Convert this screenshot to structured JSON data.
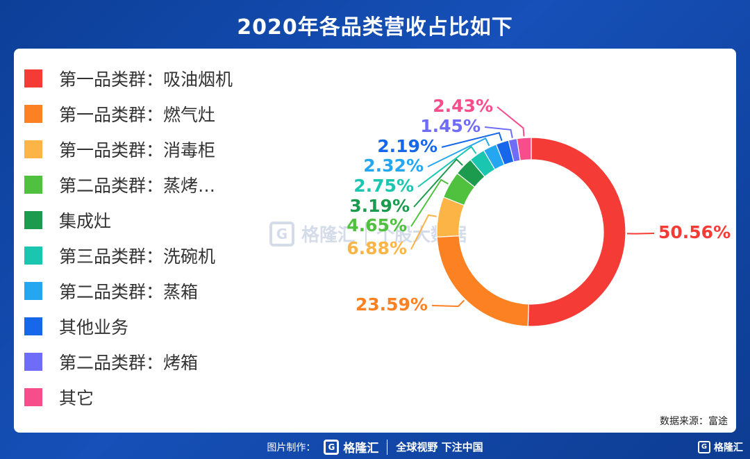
{
  "header": {
    "title": "2020年各品类营收占比如下"
  },
  "chart_data": {
    "type": "pie",
    "title": "2020年各品类营收占比如下",
    "donut": true,
    "legend_position": "left",
    "categories": [
      "第一品类群：吸油烟机",
      "第一品类群：燃气灶",
      "第一品类群：消毒柜",
      "第二品类群：蒸烤…",
      "集成灶",
      "第三品类群：洗碗机",
      "第二品类群：蒸箱",
      "其他业务",
      "第二品类群：烤箱",
      "其它"
    ],
    "values": [
      50.56,
      23.59,
      6.88,
      4.65,
      3.19,
      2.75,
      2.32,
      2.19,
      1.45,
      2.43
    ],
    "value_labels": [
      "50.56%",
      "23.59%",
      "6.88%",
      "4.65%",
      "3.19%",
      "2.75%",
      "2.32%",
      "2.19%",
      "1.45%",
      "2.43%"
    ],
    "colors": [
      "#f53b35",
      "#fb8123",
      "#fcb447",
      "#4fc13f",
      "#1c9a4d",
      "#1bc6b0",
      "#24a6f0",
      "#1667ea",
      "#6f6cf8",
      "#f74d8b"
    ]
  },
  "source": "数据来源：富途",
  "watermark": {
    "logo_char": "G",
    "brand": "格隆汇",
    "product": "个股大数据"
  },
  "footer": {
    "made_by": "图片制作：",
    "logo_char": "G",
    "brand": "格隆汇",
    "slogan": "全球视野 下注中国",
    "corner_brand": "格隆汇"
  }
}
